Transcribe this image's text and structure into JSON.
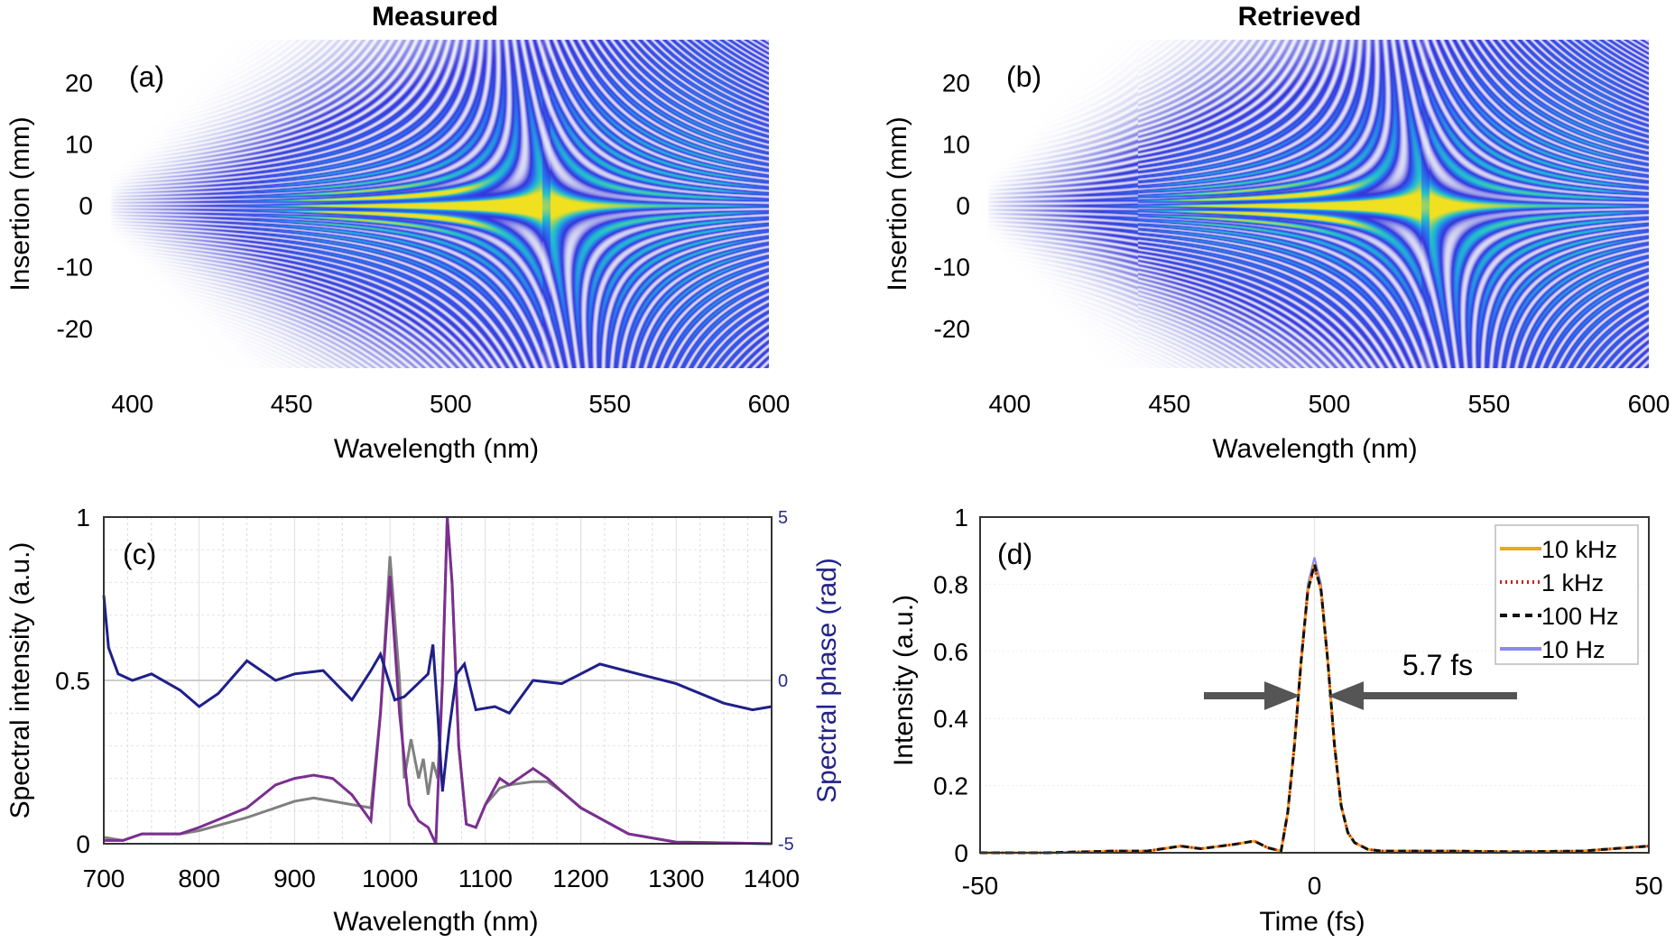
{
  "chart_data": [
    {
      "panel": "(a)",
      "type": "heatmap",
      "title": "Measured",
      "xlabel": "Wavelength (nm)",
      "ylabel": "Insertion (mm)",
      "xlim": [
        391,
        600
      ],
      "ylim": [
        -26.5,
        27
      ],
      "xticks": [
        400,
        450,
        500,
        550,
        600
      ],
      "yticks": [
        20,
        10,
        0,
        -10,
        -20
      ],
      "colormap": [
        "#ffffff",
        "#c8c8f0",
        "#3434dc",
        "#2a70ee",
        "#22c0cc",
        "#f0e020"
      ]
    },
    {
      "panel": "(b)",
      "type": "heatmap",
      "title": "Retrieved",
      "xlabel": "Wavelength (nm)",
      "ylabel": "Insertion (mm)",
      "xlim": [
        391,
        600
      ],
      "ylim": [
        -26.5,
        27
      ],
      "xticks": [
        400,
        450,
        500,
        550,
        600
      ],
      "yticks": [
        20,
        10,
        0,
        -10,
        -20
      ],
      "colormap": [
        "#ffffff",
        "#c8c8f0",
        "#3434dc",
        "#2a70ee",
        "#22c0cc",
        "#f0e020"
      ]
    },
    {
      "panel": "(c)",
      "type": "line",
      "xlabel": "Wavelength (nm)",
      "ylabel": "Spectral intensity (a.u.)",
      "y2label": "Spectral phase (rad)",
      "xlim": [
        700,
        1400
      ],
      "ylim": [
        0,
        1
      ],
      "y2lim": [
        -5,
        5
      ],
      "xticks": [
        700,
        800,
        900,
        1000,
        1100,
        1200,
        1300,
        1400
      ],
      "yticks": [
        "0",
        "0.5",
        "1"
      ],
      "y2ticks": [
        "-5",
        "0",
        "5"
      ],
      "grid": true,
      "series": [
        {
          "color": "#808080",
          "axis": "left",
          "x": [
            700,
            720,
            740,
            780,
            800,
            850,
            880,
            900,
            920,
            940,
            960,
            980,
            990,
            1000,
            1010,
            1015,
            1022,
            1030,
            1035,
            1040,
            1045,
            1050,
            1055,
            1060,
            1065,
            1072,
            1080,
            1090,
            1100,
            1115,
            1125,
            1150,
            1165,
            1180,
            1200,
            1250,
            1300,
            1400
          ],
          "y": [
            0.02,
            0.01,
            0.03,
            0.03,
            0.04,
            0.08,
            0.11,
            0.13,
            0.14,
            0.13,
            0.12,
            0.11,
            0.4,
            0.88,
            0.5,
            0.2,
            0.32,
            0.2,
            0.26,
            0.15,
            0.25,
            0.2,
            0.5,
            1.0,
            0.8,
            0.3,
            0.06,
            0.05,
            0.12,
            0.17,
            0.18,
            0.19,
            0.19,
            0.16,
            0.11,
            0.03,
            0.005,
            0.0
          ]
        },
        {
          "color": "#7b2f8f",
          "axis": "left",
          "x": [
            700,
            720,
            740,
            780,
            800,
            850,
            880,
            900,
            920,
            940,
            960,
            980,
            990,
            1000,
            1010,
            1020,
            1030,
            1040,
            1048,
            1055,
            1060,
            1065,
            1072,
            1080,
            1090,
            1100,
            1115,
            1125,
            1150,
            1165,
            1180,
            1200,
            1250,
            1300,
            1400
          ],
          "y": [
            0.01,
            0.01,
            0.03,
            0.03,
            0.05,
            0.11,
            0.18,
            0.2,
            0.21,
            0.2,
            0.15,
            0.07,
            0.4,
            0.82,
            0.4,
            0.12,
            0.07,
            0.05,
            0.0,
            0.5,
            1.0,
            0.8,
            0.3,
            0.06,
            0.05,
            0.12,
            0.2,
            0.18,
            0.23,
            0.2,
            0.16,
            0.11,
            0.03,
            0.005,
            0.0
          ]
        },
        {
          "color": "#1f1f8a",
          "axis": "right",
          "x": [
            700,
            705,
            715,
            730,
            750,
            780,
            800,
            820,
            850,
            880,
            900,
            930,
            960,
            980,
            990,
            1005,
            1015,
            1040,
            1045,
            1050,
            1055,
            1062,
            1070,
            1078,
            1090,
            1110,
            1125,
            1150,
            1180,
            1220,
            1260,
            1300,
            1350,
            1380,
            1400
          ],
          "y": [
            2.6,
            1.0,
            0.2,
            0.0,
            0.2,
            -0.3,
            -0.8,
            -0.4,
            0.6,
            0.0,
            0.2,
            0.3,
            -0.6,
            0.3,
            0.8,
            -0.6,
            -0.5,
            0.2,
            1.1,
            -1.0,
            -3.4,
            -1.5,
            0.2,
            0.5,
            -0.9,
            -0.8,
            -1.0,
            0.0,
            -0.1,
            0.5,
            0.2,
            -0.1,
            -0.7,
            -0.9,
            -0.8
          ]
        }
      ]
    },
    {
      "panel": "(d)",
      "type": "line",
      "xlabel": "Time (fs)",
      "ylabel": "Intensity (a.u.)",
      "xlim": [
        -50,
        50
      ],
      "ylim": [
        0,
        1
      ],
      "xticks": [
        "-50",
        "0",
        "50"
      ],
      "yticks": [
        "0",
        "0.2",
        "0.4",
        "0.6",
        "0.8",
        "1"
      ],
      "legend_position": "top-right",
      "annotation": "5.7 fs",
      "x": [
        -50,
        -40,
        -30,
        -25,
        -20,
        -17,
        -12,
        -9,
        -7,
        -5,
        -4,
        -3,
        -2,
        -1,
        0,
        1,
        2,
        3,
        4,
        5,
        6,
        8,
        10,
        20,
        30,
        40,
        50
      ],
      "series": [
        {
          "name": "10 kHz",
          "color": "#e8a820",
          "style": "solid",
          "y": [
            0,
            0,
            0.005,
            0.005,
            0.02,
            0.012,
            0.025,
            0.035,
            0.015,
            0.005,
            0.12,
            0.32,
            0.57,
            0.78,
            0.86,
            0.78,
            0.57,
            0.32,
            0.14,
            0.06,
            0.03,
            0.01,
            0.005,
            0.005,
            0.003,
            0.005,
            0.02
          ]
        },
        {
          "name": "1 kHz",
          "color": "#d02020",
          "style": "dotted",
          "y": [
            0,
            0,
            0.005,
            0.005,
            0.02,
            0.012,
            0.025,
            0.035,
            0.015,
            0.005,
            0.12,
            0.32,
            0.57,
            0.78,
            0.85,
            0.78,
            0.57,
            0.32,
            0.14,
            0.06,
            0.03,
            0.01,
            0.005,
            0.005,
            0.003,
            0.005,
            0.02
          ]
        },
        {
          "name": "100 Hz",
          "color": "#111111",
          "style": "dashed",
          "y": [
            0,
            0,
            0.005,
            0.005,
            0.02,
            0.012,
            0.025,
            0.035,
            0.015,
            0.005,
            0.12,
            0.32,
            0.57,
            0.78,
            0.86,
            0.78,
            0.57,
            0.32,
            0.14,
            0.06,
            0.03,
            0.01,
            0.005,
            0.005,
            0.003,
            0.005,
            0.02
          ]
        },
        {
          "name": "10 Hz",
          "color": "#8a8af0",
          "style": "solid",
          "y": [
            0,
            0,
            0.005,
            0.005,
            0.02,
            0.012,
            0.025,
            0.035,
            0.015,
            0.005,
            0.12,
            0.33,
            0.58,
            0.8,
            0.88,
            0.8,
            0.58,
            0.33,
            0.14,
            0.06,
            0.03,
            0.01,
            0.005,
            0.005,
            0.003,
            0.005,
            0.02
          ]
        }
      ]
    }
  ]
}
